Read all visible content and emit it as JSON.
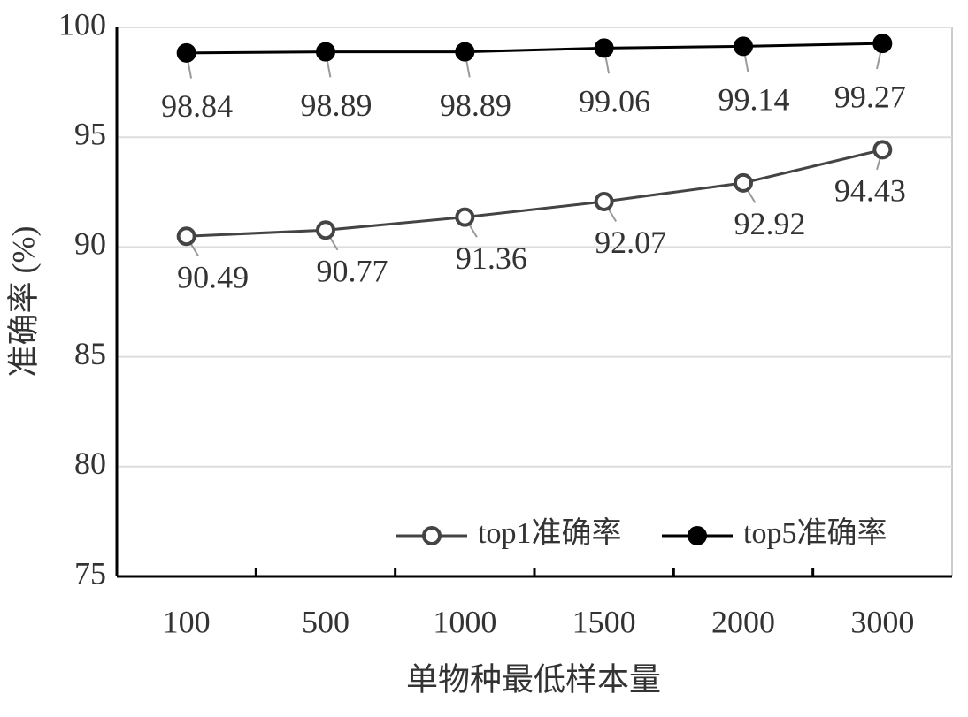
{
  "chart_data": {
    "type": "line",
    "x_label": "单物种最低样本量",
    "y_label": "准确率 (%)",
    "categories": [
      "100",
      "500",
      "1000",
      "1500",
      "2000",
      "3000"
    ],
    "series": [
      {
        "name": "top1准确率",
        "color": "#444444",
        "marker": "open",
        "values": [
          90.49,
          90.77,
          91.36,
          92.07,
          92.92,
          94.43
        ]
      },
      {
        "name": "top5准确率",
        "color": "#000000",
        "marker": "filled",
        "values": [
          98.84,
          98.89,
          98.89,
          99.06,
          99.14,
          99.27
        ]
      }
    ],
    "ylim": [
      75,
      100
    ],
    "yticks": [
      75,
      80,
      85,
      90,
      95,
      100
    ],
    "grid": true,
    "legend": "bottom-right"
  }
}
